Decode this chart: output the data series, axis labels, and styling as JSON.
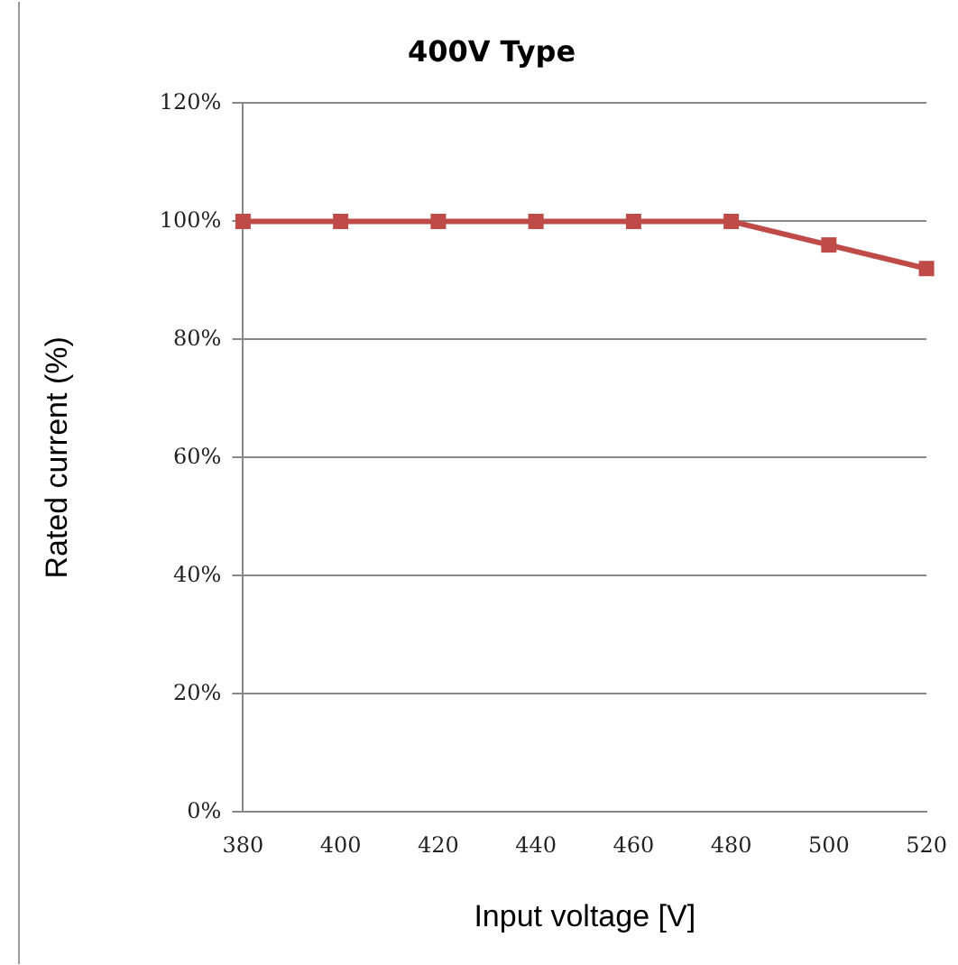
{
  "chart_data": {
    "type": "line",
    "title": "400V Type",
    "xlabel": "Input voltage [V]",
    "ylabel": "Rated current (%)",
    "categories": [
      "380",
      "400",
      "420",
      "440",
      "460",
      "480",
      "500",
      "520"
    ],
    "series": [
      {
        "color": "#be4b48",
        "values": [
          100,
          100,
          100,
          100,
          100,
          100,
          96,
          92
        ]
      }
    ],
    "ylim": [
      0,
      120
    ],
    "yticks": [
      {
        "value": 0,
        "label": "0%"
      },
      {
        "value": 20,
        "label": "20%"
      },
      {
        "value": 40,
        "label": "40%"
      },
      {
        "value": 60,
        "label": "60%"
      },
      {
        "value": 80,
        "label": "80%"
      },
      {
        "value": 100,
        "label": "100%"
      },
      {
        "value": 120,
        "label": "120%"
      }
    ],
    "grid": "y",
    "legend": false,
    "marker": "square",
    "line_style": "solid"
  }
}
